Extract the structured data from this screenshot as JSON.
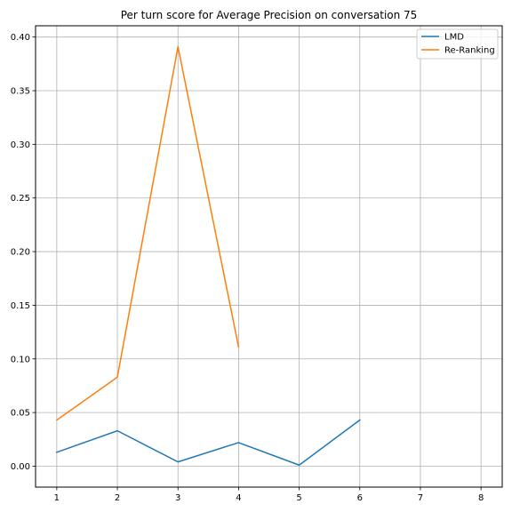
{
  "chart_data": {
    "type": "line",
    "title": "Per turn score for Average Precision on conversation 75",
    "xlabel": "",
    "ylabel": "",
    "xlim": [
      0.65,
      8.35
    ],
    "ylim": [
      -0.0195,
      0.4105
    ],
    "xticks": [
      1,
      2,
      3,
      4,
      5,
      6,
      7,
      8
    ],
    "yticks": [
      0.0,
      0.05,
      0.1,
      0.15,
      0.2,
      0.25,
      0.3,
      0.35,
      0.4
    ],
    "ytick_labels": [
      "0.00",
      "0.05",
      "0.10",
      "0.15",
      "0.20",
      "0.25",
      "0.30",
      "0.35",
      "0.40"
    ],
    "grid": true,
    "legend_position": "top-right",
    "series": [
      {
        "name": "LMD",
        "color": "#1f77b4",
        "x": [
          1,
          2,
          3,
          4,
          5,
          6
        ],
        "values": [
          0.013,
          0.033,
          0.004,
          0.022,
          0.001,
          0.043
        ]
      },
      {
        "name": "Re-Ranking",
        "color": "#ff7f0e",
        "x": [
          1,
          2,
          3,
          4
        ],
        "values": [
          0.043,
          0.083,
          0.391,
          0.111
        ]
      }
    ]
  }
}
